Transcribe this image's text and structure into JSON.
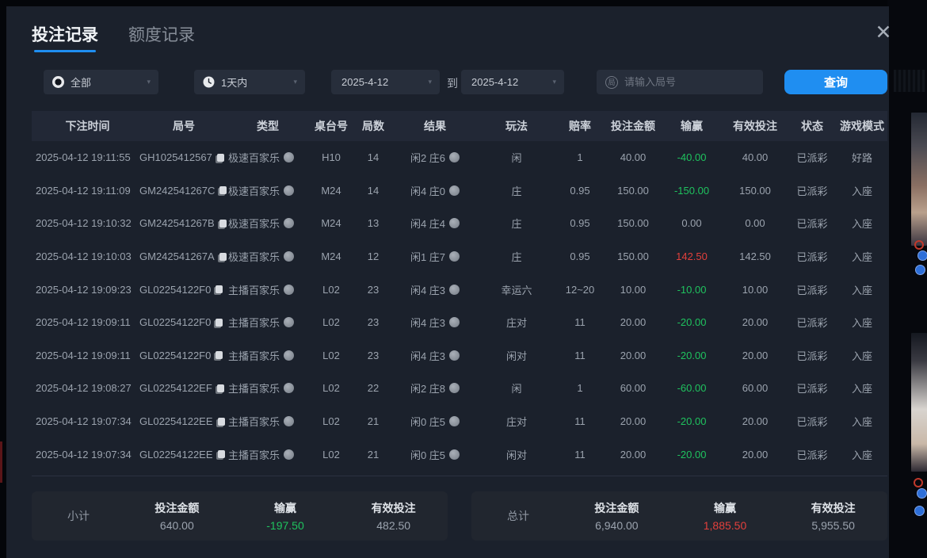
{
  "window": {
    "close_glyph": "✕"
  },
  "tabs": [
    {
      "label": "投注记录",
      "active": true
    },
    {
      "label": "额度记录",
      "active": false
    }
  ],
  "filters": {
    "type_value": "全部",
    "time_value": "1天内",
    "date_from": "2025-4-12",
    "to_label": "到",
    "date_to": "2025-4-12",
    "search_placeholder": "请输入局号",
    "search_icon_char": "局",
    "query_label": "查询",
    "caret_glyph": "▾"
  },
  "table": {
    "headers": [
      "下注时间",
      "局号",
      "类型",
      "桌台号",
      "局数",
      "结果",
      "玩法",
      "赔率",
      "投注金额",
      "输赢",
      "有效投注",
      "状态",
      "游戏模式"
    ],
    "rows": [
      {
        "time": "2025-04-12 19:11:55",
        "round": "GH1025412567",
        "type": "极速百家乐",
        "table_no": "H10",
        "rounds": "14",
        "result": "闲2 庄6",
        "play": "闲",
        "odds": "1",
        "amount": "40.00",
        "winloss": "-40.00",
        "winloss_color": "green",
        "valid": "40.00",
        "status": "已派彩",
        "mode": "好路"
      },
      {
        "time": "2025-04-12 19:11:09",
        "round": "GM242541267C",
        "type": "极速百家乐",
        "table_no": "M24",
        "rounds": "14",
        "result": "闲4 庄0",
        "play": "庄",
        "odds": "0.95",
        "amount": "150.00",
        "winloss": "-150.00",
        "winloss_color": "green",
        "valid": "150.00",
        "status": "已派彩",
        "mode": "入座"
      },
      {
        "time": "2025-04-12 19:10:32",
        "round": "GM242541267B",
        "type": "极速百家乐",
        "table_no": "M24",
        "rounds": "13",
        "result": "闲4 庄4",
        "play": "庄",
        "odds": "0.95",
        "amount": "150.00",
        "winloss": "0.00",
        "winloss_color": "plain",
        "valid": "0.00",
        "status": "已派彩",
        "mode": "入座"
      },
      {
        "time": "2025-04-12 19:10:03",
        "round": "GM242541267A",
        "type": "极速百家乐",
        "table_no": "M24",
        "rounds": "12",
        "result": "闲1 庄7",
        "play": "庄",
        "odds": "0.95",
        "amount": "150.00",
        "winloss": "142.50",
        "winloss_color": "red",
        "valid": "142.50",
        "status": "已派彩",
        "mode": "入座"
      },
      {
        "time": "2025-04-12 19:09:23",
        "round": "GL02254122F0",
        "type": "主播百家乐",
        "table_no": "L02",
        "rounds": "23",
        "result": "闲4 庄3",
        "play": "幸运六",
        "odds": "12~20",
        "amount": "10.00",
        "winloss": "-10.00",
        "winloss_color": "green",
        "valid": "10.00",
        "status": "已派彩",
        "mode": "入座"
      },
      {
        "time": "2025-04-12 19:09:11",
        "round": "GL02254122F0",
        "type": "主播百家乐",
        "table_no": "L02",
        "rounds": "23",
        "result": "闲4 庄3",
        "play": "庄对",
        "odds": "11",
        "amount": "20.00",
        "winloss": "-20.00",
        "winloss_color": "green",
        "valid": "20.00",
        "status": "已派彩",
        "mode": "入座"
      },
      {
        "time": "2025-04-12 19:09:11",
        "round": "GL02254122F0",
        "type": "主播百家乐",
        "table_no": "L02",
        "rounds": "23",
        "result": "闲4 庄3",
        "play": "闲对",
        "odds": "11",
        "amount": "20.00",
        "winloss": "-20.00",
        "winloss_color": "green",
        "valid": "20.00",
        "status": "已派彩",
        "mode": "入座"
      },
      {
        "time": "2025-04-12 19:08:27",
        "round": "GL02254122EF",
        "type": "主播百家乐",
        "table_no": "L02",
        "rounds": "22",
        "result": "闲2 庄8",
        "play": "闲",
        "odds": "1",
        "amount": "60.00",
        "winloss": "-60.00",
        "winloss_color": "green",
        "valid": "60.00",
        "status": "已派彩",
        "mode": "入座"
      },
      {
        "time": "2025-04-12 19:07:34",
        "round": "GL02254122EE",
        "type": "主播百家乐",
        "table_no": "L02",
        "rounds": "21",
        "result": "闲0 庄5",
        "play": "庄对",
        "odds": "11",
        "amount": "20.00",
        "winloss": "-20.00",
        "winloss_color": "green",
        "valid": "20.00",
        "status": "已派彩",
        "mode": "入座"
      },
      {
        "time": "2025-04-12 19:07:34",
        "round": "GL02254122EE",
        "type": "主播百家乐",
        "table_no": "L02",
        "rounds": "21",
        "result": "闲0 庄5",
        "play": "闲对",
        "odds": "11",
        "amount": "20.00",
        "winloss": "-20.00",
        "winloss_color": "green",
        "valid": "20.00",
        "status": "已派彩",
        "mode": "入座"
      }
    ]
  },
  "summary": {
    "subtotal": {
      "title": "小计",
      "groups": [
        {
          "label": "投注金额",
          "value": "640.00",
          "color": "plain"
        },
        {
          "label": "输赢",
          "value": "-197.50",
          "color": "green"
        },
        {
          "label": "有效投注",
          "value": "482.50",
          "color": "plain"
        }
      ]
    },
    "total": {
      "title": "总计",
      "groups": [
        {
          "label": "投注金额",
          "value": "6,940.00",
          "color": "plain"
        },
        {
          "label": "输赢",
          "value": "1,885.50",
          "color": "red"
        },
        {
          "label": "有效投注",
          "value": "5,955.50",
          "color": "plain"
        }
      ]
    }
  },
  "colors": {
    "accent_blue": "#1f8ef1",
    "green": "#1fc25e",
    "red": "#e2403c"
  }
}
